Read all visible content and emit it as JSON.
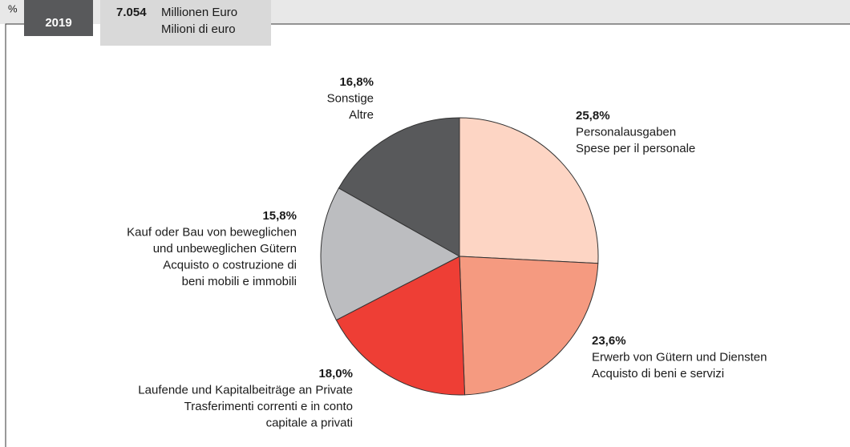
{
  "header": {
    "unit": "%",
    "year": "2019",
    "total": {
      "value": 7054,
      "label": "7.054"
    },
    "total_unit_de": "Millionen Euro",
    "total_unit_it": "Milioni di euro"
  },
  "chart_data": {
    "type": "pie",
    "categories": [
      [
        "Personalausgaben",
        "Spese per il personale"
      ],
      [
        "Erwerb von Gütern und Diensten",
        "Acquisto di beni e servizi"
      ],
      [
        "Laufende und Kapitalbeiträge an Private",
        "Trasferimenti correnti e in conto",
        "capitale a privati"
      ],
      [
        "Kauf oder Bau von beweglichen",
        "und unbeweglichen Gütern",
        "Acquisto o costruzione di",
        "beni mobili e immobili"
      ],
      [
        "Sonstige",
        "Altre"
      ]
    ],
    "values": [
      25.8,
      23.6,
      18.0,
      15.8,
      16.8
    ],
    "value_labels": [
      "25,8%",
      "23,6%",
      "18,0%",
      "15,8%",
      "16,8%"
    ],
    "colors": [
      "#fdd5c4",
      "#f59a80",
      "#ee3e35",
      "#bcbdc0",
      "#58595b"
    ]
  }
}
